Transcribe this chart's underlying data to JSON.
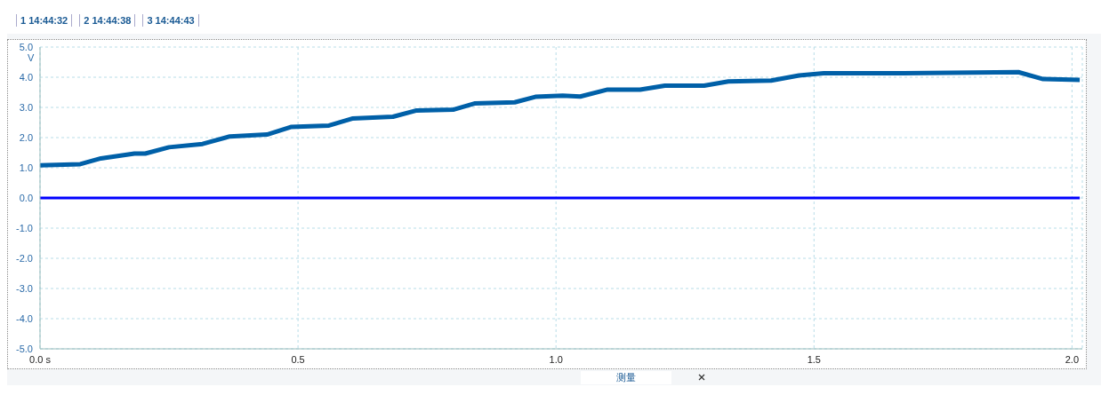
{
  "chart_data": {
    "type": "line",
    "ylabel": "V",
    "annotations": [
      "1 14:44:32",
      "2 14:44:38",
      "3 14:44:43",
      "测量"
    ],
    "xlim": [
      0,
      2.02
    ],
    "xticks": [
      {
        "value": 0,
        "label": "0.0 s"
      },
      0.5,
      {
        "value": 1,
        "label": "1.0"
      },
      1.5,
      {
        "value": 2,
        "label": "2.0"
      }
    ],
    "ylim": [
      -5,
      5
    ],
    "yticks": [
      {
        "value": -5,
        "label": "-5.0"
      },
      {
        "value": -4,
        "label": "-4.0"
      },
      {
        "value": -3,
        "label": "-3.0"
      },
      {
        "value": -2,
        "label": "-2.0"
      },
      {
        "value": -1,
        "label": "-1.0"
      },
      {
        "value": 0,
        "label": "0.0"
      },
      {
        "value": 1,
        "label": "1.0"
      },
      {
        "value": 2,
        "label": "2.0"
      },
      {
        "value": 3,
        "label": "3.0"
      },
      {
        "value": 4,
        "label": "4.0"
      },
      {
        "value": 5,
        "label": "5.0"
      }
    ],
    "grid": true,
    "legend": false,
    "marker": "none",
    "line_style": "solid",
    "series": [
      {
        "color": "#0060a8",
        "x": [
          0,
          0.078,
          0.118,
          0.183,
          0.204,
          0.25,
          0.315,
          0.368,
          0.44,
          0.486,
          0.56,
          0.605,
          0.684,
          0.73,
          0.802,
          0.842,
          0.92,
          0.96,
          1.013,
          1.047,
          1.1,
          1.163,
          1.211,
          1.287,
          1.334,
          1.417,
          1.471,
          1.519,
          1.663,
          1.896,
          1.944,
          2.015
        ],
        "values": [
          1.08,
          1.12,
          1.31,
          1.47,
          1.47,
          1.68,
          1.79,
          2.04,
          2.1,
          2.35,
          2.4,
          2.63,
          2.69,
          2.9,
          2.93,
          3.13,
          3.17,
          3.35,
          3.39,
          3.36,
          3.59,
          3.59,
          3.72,
          3.72,
          3.86,
          3.89,
          4.06,
          4.13,
          4.13,
          4.17,
          3.94,
          3.91
        ]
      },
      {
        "color": "#0000ff",
        "x": [
          0,
          2.015
        ],
        "values": [
          0,
          0
        ]
      }
    ]
  }
}
